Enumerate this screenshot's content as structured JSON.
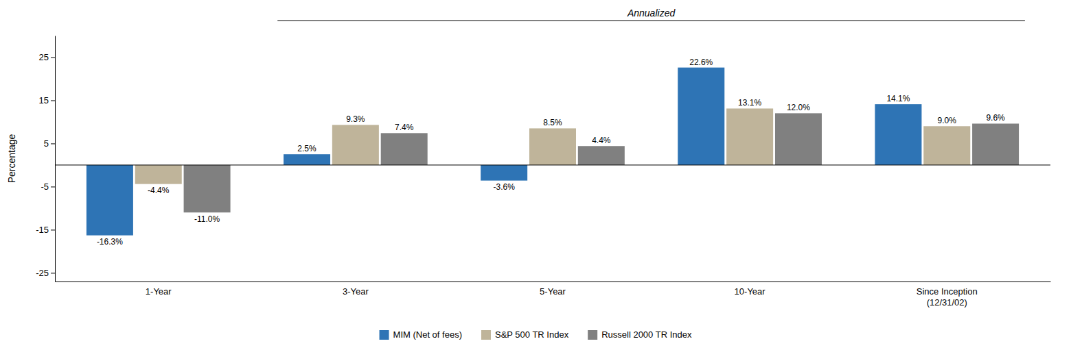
{
  "chart_data": {
    "type": "bar",
    "categories": [
      "1-Year",
      "3-Year",
      "5-Year",
      "10-Year",
      "Since Inception\n(12/31/02)"
    ],
    "series": [
      {
        "name": "MIM (Net of fees)",
        "color": "#2E74B5",
        "values": [
          -16.3,
          2.5,
          -3.6,
          22.6,
          14.1
        ],
        "value_labels": [
          "-16.3%",
          "2.5%",
          "-3.6%",
          "22.6%",
          "14.1%"
        ]
      },
      {
        "name": "S&P 500 TR Index",
        "color": "#BFB49A",
        "values": [
          -4.4,
          9.3,
          8.5,
          13.1,
          9.0
        ],
        "value_labels": [
          "-4.4%",
          "9.3%",
          "8.5%",
          "13.1%",
          "9.0%"
        ]
      },
      {
        "name": "Russell 2000 TR Index",
        "color": "#808080",
        "values": [
          -11.0,
          7.4,
          4.4,
          12.0,
          9.6
        ],
        "value_labels": [
          "-11.0%",
          "7.4%",
          "4.4%",
          "12.0%",
          "9.6%"
        ]
      }
    ],
    "ylim": [
      -27,
      30
    ],
    "yticks": [
      25,
      15,
      5,
      -5,
      -15,
      -25
    ],
    "ylabel": "Percentage",
    "annotations": [
      "Annualized"
    ],
    "data_labels": true,
    "grid": false,
    "legend": "bottom"
  }
}
